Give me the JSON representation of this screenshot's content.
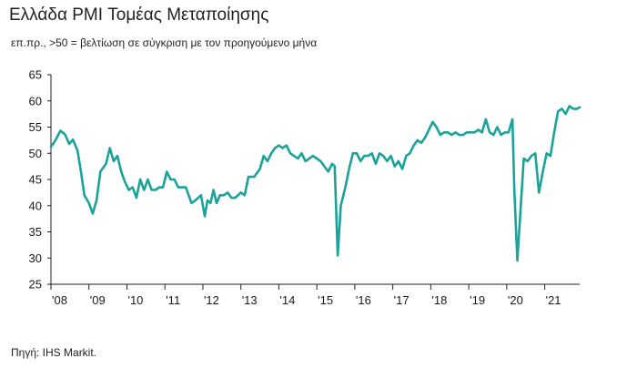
{
  "title": "Ελλάδα PMI Τομέας Μεταποίησης",
  "subtitle": "επ.πρ., >50 = βελτίωση σε σύγκριση με τον προηγούμενο μήνα",
  "source": "Πηγή: IHS Markit.",
  "colors": {
    "line": "#1aa39a",
    "axis": "#222222"
  },
  "chart_data": {
    "type": "line",
    "title": "Ελλάδα PMI Τομέας Μεταποίησης",
    "xlabel": "",
    "ylabel": "",
    "ylim": [
      25,
      65
    ],
    "yticks": [
      25,
      30,
      35,
      40,
      45,
      50,
      55,
      60,
      65
    ],
    "xlim": [
      2008.0,
      2021.92
    ],
    "xticks": [
      {
        "value": 2008,
        "label": "'08"
      },
      {
        "value": 2009,
        "label": "'09"
      },
      {
        "value": 2010,
        "label": "'10"
      },
      {
        "value": 2011,
        "label": "'11"
      },
      {
        "value": 2012,
        "label": "'12"
      },
      {
        "value": 2013,
        "label": "'13"
      },
      {
        "value": 2014,
        "label": "'14"
      },
      {
        "value": 2015,
        "label": "'15"
      },
      {
        "value": 2016,
        "label": "'16"
      },
      {
        "value": 2017,
        "label": "'17"
      },
      {
        "value": 2018,
        "label": "'18"
      },
      {
        "value": 2019,
        "label": "'19"
      },
      {
        "value": 2020,
        "label": "'20"
      },
      {
        "value": 2021,
        "label": "'21"
      }
    ],
    "grid": false,
    "series": [
      {
        "color": "#1aa39a",
        "points": [
          [
            2008.0,
            51.2
          ],
          [
            2008.12,
            52.5
          ],
          [
            2008.25,
            54.3
          ],
          [
            2008.37,
            53.6
          ],
          [
            2008.48,
            51.8
          ],
          [
            2008.58,
            52.6
          ],
          [
            2008.7,
            50.5
          ],
          [
            2008.8,
            46.0
          ],
          [
            2008.88,
            42.0
          ],
          [
            2009.0,
            40.5
          ],
          [
            2009.1,
            38.5
          ],
          [
            2009.2,
            41.0
          ],
          [
            2009.3,
            46.5
          ],
          [
            2009.45,
            48.0
          ],
          [
            2009.55,
            51.0
          ],
          [
            2009.65,
            48.5
          ],
          [
            2009.75,
            49.5
          ],
          [
            2009.85,
            46.5
          ],
          [
            2009.95,
            44.5
          ],
          [
            2010.05,
            43.0
          ],
          [
            2010.15,
            43.5
          ],
          [
            2010.25,
            41.5
          ],
          [
            2010.35,
            45.0
          ],
          [
            2010.45,
            43.0
          ],
          [
            2010.55,
            45.0
          ],
          [
            2010.65,
            43.0
          ],
          [
            2010.75,
            43.0
          ],
          [
            2010.85,
            43.5
          ],
          [
            2010.95,
            43.5
          ],
          [
            2011.05,
            46.5
          ],
          [
            2011.15,
            45.0
          ],
          [
            2011.25,
            45.0
          ],
          [
            2011.35,
            43.5
          ],
          [
            2011.45,
            43.5
          ],
          [
            2011.55,
            43.5
          ],
          [
            2011.7,
            40.5
          ],
          [
            2011.8,
            41.0
          ],
          [
            2011.95,
            42.0
          ],
          [
            2012.05,
            38.0
          ],
          [
            2012.12,
            41.0
          ],
          [
            2012.2,
            40.5
          ],
          [
            2012.28,
            43.0
          ],
          [
            2012.36,
            40.5
          ],
          [
            2012.45,
            42.0
          ],
          [
            2012.55,
            42.0
          ],
          [
            2012.65,
            42.5
          ],
          [
            2012.75,
            41.5
          ],
          [
            2012.85,
            41.5
          ],
          [
            2013.0,
            42.5
          ],
          [
            2013.1,
            42.0
          ],
          [
            2013.2,
            45.5
          ],
          [
            2013.35,
            45.5
          ],
          [
            2013.5,
            47.0
          ],
          [
            2013.6,
            49.5
          ],
          [
            2013.7,
            48.5
          ],
          [
            2013.8,
            50.0
          ],
          [
            2013.9,
            51.0
          ],
          [
            2014.0,
            51.5
          ],
          [
            2014.1,
            51.0
          ],
          [
            2014.2,
            51.5
          ],
          [
            2014.3,
            50.0
          ],
          [
            2014.4,
            49.5
          ],
          [
            2014.5,
            49.0
          ],
          [
            2014.6,
            50.0
          ],
          [
            2014.7,
            48.5
          ],
          [
            2014.8,
            49.0
          ],
          [
            2014.9,
            49.5
          ],
          [
            2015.0,
            49.0
          ],
          [
            2015.1,
            48.5
          ],
          [
            2015.2,
            47.5
          ],
          [
            2015.3,
            46.5
          ],
          [
            2015.4,
            48.0
          ],
          [
            2015.47,
            47.5
          ],
          [
            2015.55,
            30.5
          ],
          [
            2015.63,
            40.0
          ],
          [
            2015.75,
            43.5
          ],
          [
            2015.85,
            47.0
          ],
          [
            2015.95,
            50.0
          ],
          [
            2016.05,
            50.0
          ],
          [
            2016.15,
            48.5
          ],
          [
            2016.25,
            49.5
          ],
          [
            2016.35,
            49.5
          ],
          [
            2016.45,
            50.0
          ],
          [
            2016.55,
            48.0
          ],
          [
            2016.65,
            50.0
          ],
          [
            2016.75,
            49.5
          ],
          [
            2016.85,
            48.5
          ],
          [
            2016.95,
            49.5
          ],
          [
            2017.05,
            47.5
          ],
          [
            2017.15,
            48.5
          ],
          [
            2017.25,
            47.0
          ],
          [
            2017.35,
            49.5
          ],
          [
            2017.45,
            50.0
          ],
          [
            2017.55,
            51.5
          ],
          [
            2017.65,
            52.5
          ],
          [
            2017.75,
            52.0
          ],
          [
            2017.85,
            53.0
          ],
          [
            2017.95,
            54.5
          ],
          [
            2018.05,
            56.0
          ],
          [
            2018.15,
            55.0
          ],
          [
            2018.25,
            53.5
          ],
          [
            2018.35,
            54.0
          ],
          [
            2018.45,
            54.0
          ],
          [
            2018.55,
            53.5
          ],
          [
            2018.65,
            54.0
          ],
          [
            2018.75,
            53.5
          ],
          [
            2018.85,
            53.5
          ],
          [
            2018.95,
            54.0
          ],
          [
            2019.05,
            54.0
          ],
          [
            2019.15,
            54.0
          ],
          [
            2019.25,
            54.5
          ],
          [
            2019.35,
            54.0
          ],
          [
            2019.45,
            56.5
          ],
          [
            2019.55,
            54.0
          ],
          [
            2019.65,
            53.5
          ],
          [
            2019.75,
            55.0
          ],
          [
            2019.85,
            53.5
          ],
          [
            2019.95,
            54.0
          ],
          [
            2020.05,
            54.0
          ],
          [
            2020.15,
            56.5
          ],
          [
            2020.2,
            43.0
          ],
          [
            2020.28,
            29.5
          ],
          [
            2020.37,
            40.0
          ],
          [
            2020.45,
            49.0
          ],
          [
            2020.55,
            48.5
          ],
          [
            2020.65,
            49.5
          ],
          [
            2020.75,
            50.0
          ],
          [
            2020.85,
            42.5
          ],
          [
            2020.95,
            46.5
          ],
          [
            2021.05,
            50.0
          ],
          [
            2021.15,
            49.5
          ],
          [
            2021.25,
            54.0
          ],
          [
            2021.35,
            58.0
          ],
          [
            2021.45,
            58.5
          ],
          [
            2021.55,
            57.5
          ],
          [
            2021.65,
            59.0
          ],
          [
            2021.75,
            58.5
          ],
          [
            2021.85,
            58.5
          ],
          [
            2021.92,
            58.8
          ]
        ]
      }
    ]
  }
}
